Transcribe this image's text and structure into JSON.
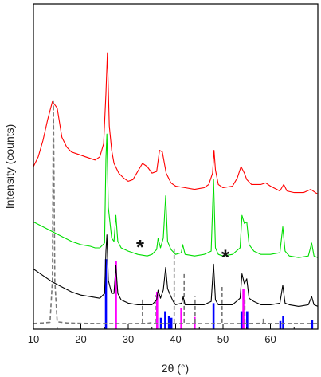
{
  "chart_data": {
    "type": "line",
    "title": "",
    "xlabel": "2θ (°)",
    "ylabel": "Intensity (counts)",
    "xlim": [
      10,
      70
    ],
    "xticks": [
      10,
      20,
      30,
      40,
      50,
      60
    ],
    "grid": false,
    "legend": "none",
    "series": [
      {
        "color": "#ff0000",
        "dash": "solid",
        "points": [
          [
            10,
            10.0
          ],
          [
            11,
            10.6
          ],
          [
            12,
            11.6
          ],
          [
            13,
            12.9
          ],
          [
            14,
            14.0
          ],
          [
            15,
            13.6
          ],
          [
            16,
            11.8
          ],
          [
            17,
            11.2
          ],
          [
            18,
            10.9
          ],
          [
            19,
            10.8
          ],
          [
            20,
            10.7
          ],
          [
            21,
            10.6
          ],
          [
            22,
            10.5
          ],
          [
            23,
            10.4
          ],
          [
            24,
            10.6
          ],
          [
            24.8,
            11.4
          ],
          [
            25.3,
            14.5
          ],
          [
            25.6,
            17.0
          ],
          [
            26.0,
            12.5
          ],
          [
            26.5,
            11.0
          ],
          [
            27,
            10.2
          ],
          [
            28,
            9.6
          ],
          [
            29,
            9.3
          ],
          [
            30,
            9.1
          ],
          [
            31,
            9.2
          ],
          [
            32,
            9.7
          ],
          [
            33,
            10.2
          ],
          [
            34,
            10.0
          ],
          [
            35,
            9.6
          ],
          [
            36,
            9.7
          ],
          [
            36.6,
            11.0
          ],
          [
            37.2,
            10.9
          ],
          [
            38,
            9.6
          ],
          [
            39,
            9.0
          ],
          [
            40,
            8.8
          ],
          [
            42,
            8.7
          ],
          [
            44,
            8.6
          ],
          [
            46,
            8.7
          ],
          [
            47,
            8.9
          ],
          [
            47.8,
            9.6
          ],
          [
            48.1,
            11.0
          ],
          [
            48.4,
            9.8
          ],
          [
            49,
            8.9
          ],
          [
            50,
            8.7
          ],
          [
            52,
            8.8
          ],
          [
            53,
            9.3
          ],
          [
            53.8,
            10.0
          ],
          [
            54.5,
            9.6
          ],
          [
            55,
            9.2
          ],
          [
            56,
            8.9
          ],
          [
            58,
            8.9
          ],
          [
            59,
            9.0
          ],
          [
            60,
            8.8
          ],
          [
            62,
            8.5
          ],
          [
            62.8,
            8.9
          ],
          [
            63.5,
            8.5
          ],
          [
            65,
            8.4
          ],
          [
            67,
            8.4
          ],
          [
            68.5,
            8.6
          ],
          [
            70,
            8.3
          ]
        ]
      },
      {
        "color": "#00dd00",
        "dash": "solid",
        "points": [
          [
            10,
            6.6
          ],
          [
            12,
            6.3
          ],
          [
            14,
            6.0
          ],
          [
            16,
            5.7
          ],
          [
            18,
            5.4
          ],
          [
            20,
            5.2
          ],
          [
            22,
            5.1
          ],
          [
            23,
            5.0
          ],
          [
            24,
            5.0
          ],
          [
            25,
            5.3
          ],
          [
            25.3,
            10.5
          ],
          [
            25.5,
            12.0
          ],
          [
            25.8,
            7.5
          ],
          [
            26.5,
            5.6
          ],
          [
            27,
            5.4
          ],
          [
            27.4,
            7.0
          ],
          [
            27.8,
            5.4
          ],
          [
            28.5,
            5.0
          ],
          [
            30,
            4.8
          ],
          [
            32,
            4.6
          ],
          [
            34,
            4.5
          ],
          [
            35,
            4.6
          ],
          [
            36.0,
            4.9
          ],
          [
            36.3,
            5.6
          ],
          [
            36.8,
            5.0
          ],
          [
            37.4,
            5.6
          ],
          [
            37.9,
            8.2
          ],
          [
            38.3,
            5.4
          ],
          [
            39,
            4.9
          ],
          [
            40,
            4.6
          ],
          [
            41.2,
            4.7
          ],
          [
            41.5,
            5.2
          ],
          [
            42,
            4.6
          ],
          [
            44,
            4.5
          ],
          [
            46,
            4.6
          ],
          [
            47.5,
            4.8
          ],
          [
            48.0,
            9.2
          ],
          [
            48.4,
            5.0
          ],
          [
            49,
            4.6
          ],
          [
            50,
            4.5
          ],
          [
            52,
            4.6
          ],
          [
            53.6,
            5.0
          ],
          [
            54.0,
            7.0
          ],
          [
            54.5,
            6.5
          ],
          [
            55.0,
            6.6
          ],
          [
            55.5,
            5.2
          ],
          [
            56.5,
            4.8
          ],
          [
            58,
            4.6
          ],
          [
            60,
            4.6
          ],
          [
            62,
            4.7
          ],
          [
            62.6,
            6.3
          ],
          [
            63.1,
            4.8
          ],
          [
            64,
            4.5
          ],
          [
            66,
            4.4
          ],
          [
            68,
            4.5
          ],
          [
            68.7,
            5.3
          ],
          [
            69.2,
            4.5
          ],
          [
            70,
            4.4
          ]
        ]
      },
      {
        "color": "#000000",
        "dash": "solid",
        "points": [
          [
            10,
            3.7
          ],
          [
            12,
            3.3
          ],
          [
            14,
            2.9
          ],
          [
            16,
            2.6
          ],
          [
            18,
            2.3
          ],
          [
            20,
            2.1
          ],
          [
            22,
            2.0
          ],
          [
            24,
            1.9
          ],
          [
            25,
            2.2
          ],
          [
            25.3,
            4.8
          ],
          [
            25.5,
            5.8
          ],
          [
            25.8,
            3.0
          ],
          [
            26.5,
            2.2
          ],
          [
            27,
            2.2
          ],
          [
            27.4,
            3.9
          ],
          [
            27.8,
            2.2
          ],
          [
            28.5,
            1.8
          ],
          [
            30,
            1.6
          ],
          [
            32,
            1.5
          ],
          [
            34,
            1.5
          ],
          [
            35,
            1.5
          ],
          [
            36.0,
            1.8
          ],
          [
            36.3,
            2.4
          ],
          [
            36.8,
            1.9
          ],
          [
            37.4,
            2.4
          ],
          [
            37.9,
            3.8
          ],
          [
            38.3,
            2.5
          ],
          [
            38.7,
            2.2
          ],
          [
            39.5,
            1.7
          ],
          [
            40,
            1.5
          ],
          [
            41.3,
            1.6
          ],
          [
            41.6,
            2.0
          ],
          [
            42,
            1.5
          ],
          [
            44,
            1.5
          ],
          [
            46,
            1.5
          ],
          [
            47.5,
            1.7
          ],
          [
            48.0,
            4.0
          ],
          [
            48.4,
            1.8
          ],
          [
            49,
            1.5
          ],
          [
            50,
            1.5
          ],
          [
            52,
            1.5
          ],
          [
            53.6,
            1.9
          ],
          [
            54.0,
            3.4
          ],
          [
            54.5,
            2.8
          ],
          [
            55.0,
            3.1
          ],
          [
            55.5,
            1.9
          ],
          [
            56.5,
            1.7
          ],
          [
            58,
            1.5
          ],
          [
            60,
            1.5
          ],
          [
            62,
            1.6
          ],
          [
            62.6,
            2.7
          ],
          [
            63.1,
            1.6
          ],
          [
            64,
            1.5
          ],
          [
            66,
            1.4
          ],
          [
            68,
            1.5
          ],
          [
            68.7,
            2.0
          ],
          [
            69.2,
            1.5
          ],
          [
            70,
            1.4
          ]
        ]
      },
      {
        "color": "#777777",
        "dash": "dashed",
        "points": [
          [
            10,
            0.35
          ],
          [
            12,
            0.38
          ],
          [
            13.5,
            0.42
          ],
          [
            14.0,
            3.0
          ],
          [
            14.2,
            14.0
          ],
          [
            14.5,
            3.0
          ],
          [
            15,
            0.45
          ],
          [
            17,
            0.38
          ],
          [
            20,
            0.36
          ],
          [
            24,
            0.35
          ],
          [
            28,
            0.34
          ],
          [
            32,
            0.35
          ],
          [
            34,
            0.36
          ],
          [
            35,
            0.4
          ],
          [
            35.5,
            0.35
          ],
          [
            40,
            0.34
          ],
          [
            45,
            0.34
          ],
          [
            50,
            0.34
          ],
          [
            55,
            0.35
          ],
          [
            58,
            0.36
          ],
          [
            60,
            0.35
          ],
          [
            65,
            0.35
          ],
          [
            70,
            0.35
          ]
        ]
      }
    ],
    "reference_lines": [
      {
        "color": "#0000ff",
        "x": [
          25.3,
          36.9,
          37.8,
          38.6,
          39.1,
          48.0,
          53.9,
          55.1,
          62.1,
          62.7,
          68.8
        ],
        "h": [
          4.3,
          0.7,
          1.1,
          0.8,
          0.7,
          1.6,
          1.1,
          1.1,
          0.5,
          0.8,
          0.55
        ]
      },
      {
        "color": "#ff00ff",
        "x": [
          27.4,
          36.1,
          41.2,
          44.0,
          54.3
        ],
        "h": [
          4.2,
          2.3,
          1.3,
          0.75,
          2.5
        ]
      },
      {
        "color": "#777777",
        "dash": "dashed",
        "x": [
          33.0,
          35.7,
          39.7,
          41.8,
          44.1,
          49.8,
          54.6,
          58.5
        ],
        "y0": 0.4,
        "y1": [
          1.9,
          2.1,
          5.0,
          3.4,
          2.0,
          2.6,
          1.9,
          0.8
        ]
      }
    ],
    "annotations": [
      {
        "text": "*",
        "x": 32.5,
        "y": 4.6
      },
      {
        "text": "*",
        "x": 50.5,
        "y": 4.0
      }
    ]
  }
}
